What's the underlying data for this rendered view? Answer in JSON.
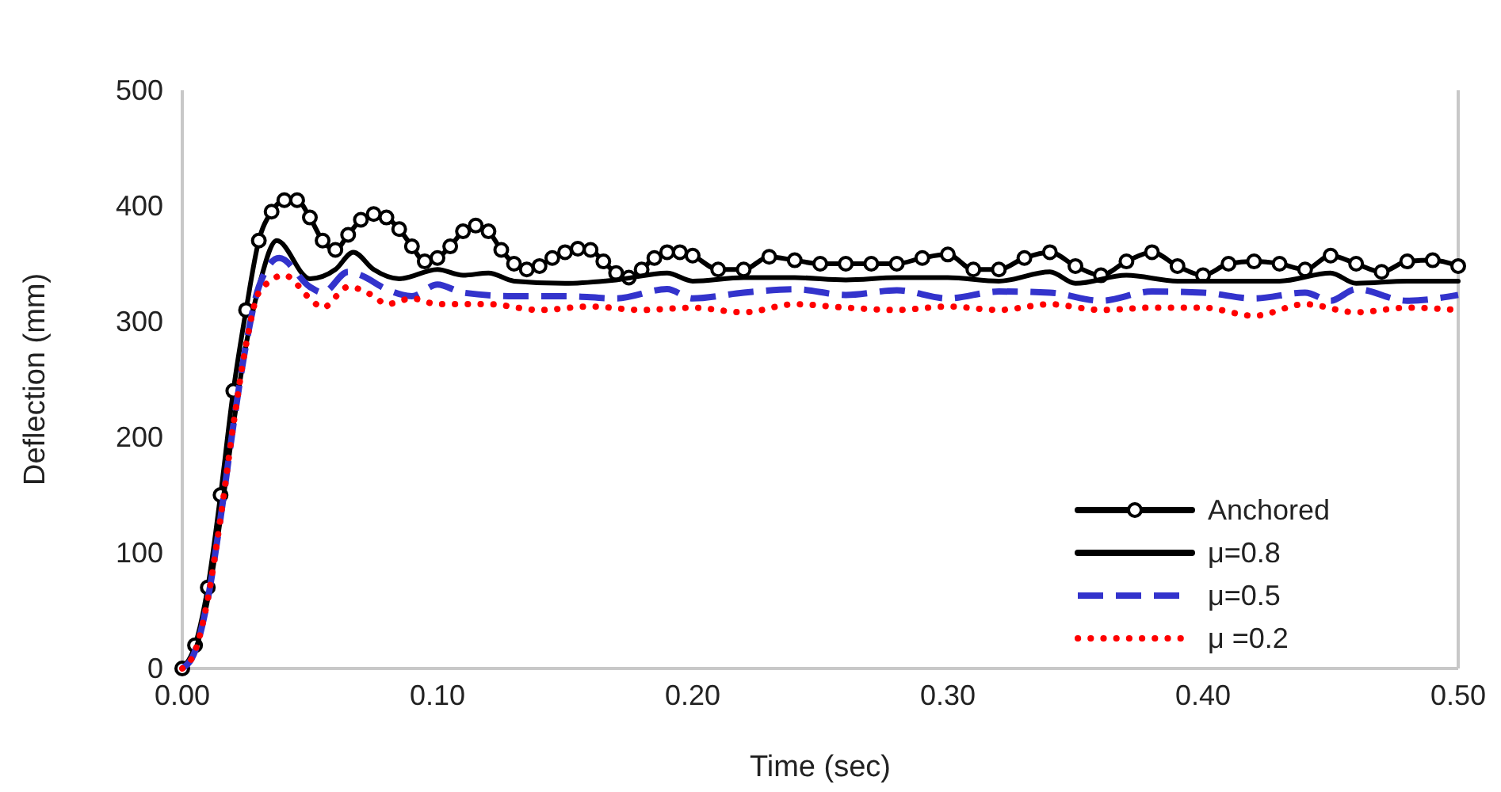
{
  "chart_data": {
    "type": "line",
    "xlabel": "Time (sec)",
    "ylabel": "Deflection (mm)",
    "xlim": [
      0,
      0.5
    ],
    "ylim": [
      0,
      500
    ],
    "xticks": [
      {
        "value": 0,
        "label": "0.00"
      },
      {
        "value": 0.1,
        "label": "0.10"
      },
      {
        "value": 0.2,
        "label": "0.20"
      },
      {
        "value": 0.3,
        "label": "0.30"
      },
      {
        "value": 0.4,
        "label": "0.40"
      },
      {
        "value": 0.5,
        "label": "0.50"
      }
    ],
    "yticks": [
      0,
      100,
      200,
      300,
      400,
      500
    ],
    "grid": false,
    "legend": "bottom right",
    "series": [
      {
        "name": "Anchored",
        "color": "#000000",
        "marker": "circle",
        "line_style": "solid",
        "x": [
          0,
          0.005,
          0.01,
          0.015,
          0.02,
          0.025,
          0.03,
          0.035,
          0.04,
          0.045,
          0.05,
          0.055,
          0.06,
          0.065,
          0.07,
          0.075,
          0.08,
          0.085,
          0.09,
          0.095,
          0.1,
          0.105,
          0.11,
          0.115,
          0.12,
          0.125,
          0.13,
          0.135,
          0.14,
          0.145,
          0.15,
          0.155,
          0.16,
          0.165,
          0.17,
          0.175,
          0.18,
          0.185,
          0.19,
          0.195,
          0.2,
          0.21,
          0.22,
          0.23,
          0.24,
          0.25,
          0.26,
          0.27,
          0.28,
          0.29,
          0.3,
          0.31,
          0.32,
          0.33,
          0.34,
          0.35,
          0.36,
          0.37,
          0.38,
          0.39,
          0.4,
          0.41,
          0.42,
          0.43,
          0.44,
          0.45,
          0.46,
          0.47,
          0.48,
          0.49,
          0.5
        ],
        "values": [
          0,
          20,
          70,
          150,
          240,
          310,
          370,
          395,
          405,
          405,
          390,
          370,
          362,
          375,
          388,
          393,
          390,
          380,
          365,
          352,
          355,
          365,
          378,
          383,
          378,
          362,
          350,
          345,
          348,
          355,
          360,
          363,
          362,
          352,
          342,
          338,
          345,
          355,
          360,
          360,
          357,
          345,
          345,
          356,
          353,
          350,
          350,
          350,
          350,
          355,
          358,
          345,
          345,
          355,
          360,
          348,
          340,
          352,
          360,
          348,
          340,
          350,
          352,
          350,
          345,
          357,
          350,
          343,
          352,
          353,
          348
        ]
      },
      {
        "name": "μ=0.8",
        "color": "#000000",
        "marker": "none",
        "line_style": "solid",
        "x": [
          0,
          0.005,
          0.01,
          0.015,
          0.02,
          0.025,
          0.03,
          0.037,
          0.05,
          0.06,
          0.067,
          0.075,
          0.085,
          0.1,
          0.11,
          0.12,
          0.13,
          0.15,
          0.17,
          0.19,
          0.2,
          0.22,
          0.24,
          0.26,
          0.28,
          0.3,
          0.32,
          0.34,
          0.35,
          0.37,
          0.39,
          0.41,
          0.43,
          0.45,
          0.46,
          0.48,
          0.5
        ],
        "values": [
          0,
          15,
          60,
          130,
          210,
          280,
          330,
          370,
          337,
          345,
          360,
          345,
          337,
          345,
          340,
          342,
          335,
          333,
          336,
          342,
          335,
          338,
          338,
          336,
          338,
          338,
          335,
          343,
          333,
          340,
          335,
          335,
          335,
          342,
          333,
          335,
          335
        ]
      },
      {
        "name": "μ=0.5",
        "color": "#3333cc",
        "marker": "none",
        "line_style": "dashed",
        "x": [
          0,
          0.005,
          0.01,
          0.015,
          0.02,
          0.025,
          0.03,
          0.038,
          0.05,
          0.055,
          0.065,
          0.07,
          0.08,
          0.09,
          0.1,
          0.11,
          0.13,
          0.15,
          0.17,
          0.19,
          0.2,
          0.22,
          0.24,
          0.26,
          0.28,
          0.3,
          0.32,
          0.34,
          0.36,
          0.38,
          0.4,
          0.42,
          0.44,
          0.45,
          0.46,
          0.48,
          0.5
        ],
        "values": [
          0,
          15,
          60,
          130,
          210,
          280,
          330,
          355,
          330,
          325,
          343,
          340,
          328,
          322,
          332,
          325,
          322,
          322,
          320,
          328,
          320,
          325,
          328,
          323,
          327,
          320,
          326,
          325,
          318,
          326,
          325,
          320,
          325,
          318,
          328,
          318,
          323
        ]
      },
      {
        "name": "μ =0.2",
        "color": "#ff0000",
        "marker": "none",
        "line_style": "dotted",
        "x": [
          0,
          0.005,
          0.01,
          0.015,
          0.02,
          0.025,
          0.03,
          0.04,
          0.05,
          0.055,
          0.065,
          0.075,
          0.08,
          0.09,
          0.1,
          0.12,
          0.14,
          0.16,
          0.18,
          0.2,
          0.22,
          0.24,
          0.26,
          0.28,
          0.3,
          0.32,
          0.34,
          0.36,
          0.38,
          0.4,
          0.42,
          0.44,
          0.46,
          0.48,
          0.5
        ],
        "values": [
          0,
          15,
          60,
          130,
          210,
          280,
          325,
          340,
          320,
          312,
          330,
          322,
          315,
          320,
          315,
          315,
          310,
          313,
          310,
          312,
          308,
          315,
          312,
          310,
          313,
          310,
          315,
          310,
          312,
          312,
          305,
          315,
          308,
          312,
          310
        ]
      }
    ]
  }
}
